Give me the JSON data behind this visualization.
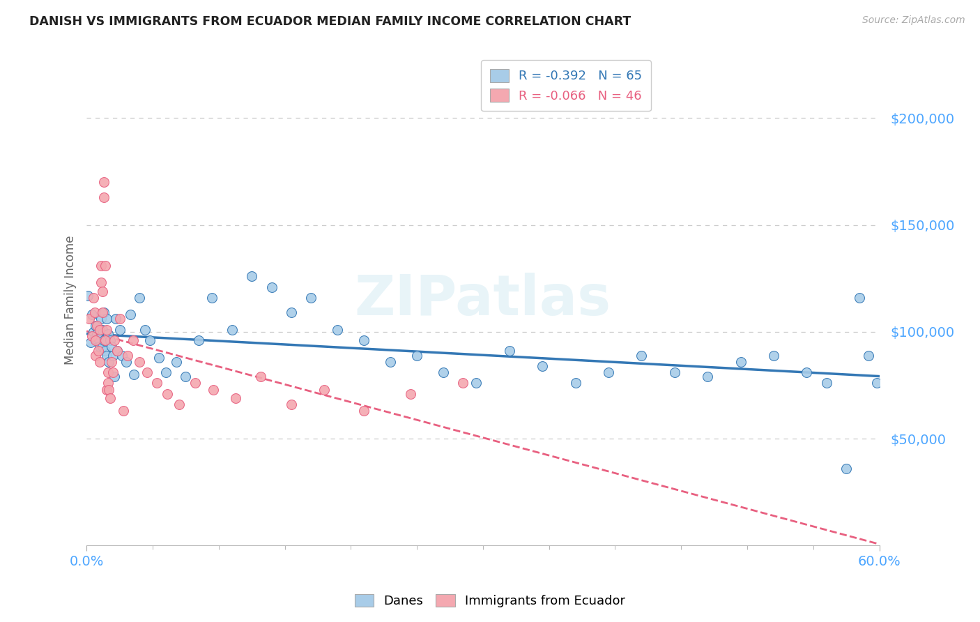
{
  "title": "DANISH VS IMMIGRANTS FROM ECUADOR MEDIAN FAMILY INCOME CORRELATION CHART",
  "source": "Source: ZipAtlas.com",
  "ylabel": "Median Family Income",
  "watermark": "ZIPatlas",
  "danes_R": -0.392,
  "danes_N": 65,
  "ecuador_R": -0.066,
  "ecuador_N": 46,
  "danes_color": "#a8cce8",
  "ecuador_color": "#f4a8b0",
  "danes_line_color": "#3478b5",
  "ecuador_line_color": "#e86080",
  "ytick_labels": [
    "$50,000",
    "$100,000",
    "$150,000",
    "$200,000"
  ],
  "ytick_vals": [
    50000,
    100000,
    150000,
    200000
  ],
  "xlim": [
    0.0,
    0.6
  ],
  "ylim": [
    0,
    230000
  ],
  "danes_x": [
    0.001,
    0.003,
    0.004,
    0.005,
    0.006,
    0.007,
    0.008,
    0.009,
    0.01,
    0.011,
    0.012,
    0.012,
    0.013,
    0.013,
    0.014,
    0.015,
    0.015,
    0.016,
    0.017,
    0.018,
    0.019,
    0.02,
    0.021,
    0.022,
    0.023,
    0.025,
    0.027,
    0.03,
    0.033,
    0.036,
    0.04,
    0.044,
    0.048,
    0.055,
    0.06,
    0.068,
    0.075,
    0.085,
    0.095,
    0.11,
    0.125,
    0.14,
    0.155,
    0.17,
    0.19,
    0.21,
    0.23,
    0.25,
    0.27,
    0.295,
    0.32,
    0.345,
    0.37,
    0.395,
    0.42,
    0.445,
    0.47,
    0.495,
    0.52,
    0.545,
    0.56,
    0.575,
    0.585,
    0.592,
    0.598
  ],
  "danes_y": [
    117000,
    95000,
    108000,
    100000,
    97000,
    103000,
    99000,
    97000,
    93000,
    106000,
    101000,
    93000,
    109000,
    96000,
    91000,
    89000,
    106000,
    99000,
    86000,
    96000,
    93000,
    89000,
    79000,
    106000,
    91000,
    101000,
    89000,
    86000,
    108000,
    80000,
    116000,
    101000,
    96000,
    88000,
    81000,
    86000,
    79000,
    96000,
    116000,
    101000,
    126000,
    121000,
    109000,
    116000,
    101000,
    96000,
    86000,
    89000,
    81000,
    76000,
    91000,
    84000,
    76000,
    81000,
    89000,
    81000,
    79000,
    86000,
    89000,
    81000,
    76000,
    36000,
    116000,
    89000,
    76000
  ],
  "ecuador_x": [
    0.002,
    0.004,
    0.005,
    0.006,
    0.007,
    0.007,
    0.008,
    0.009,
    0.01,
    0.01,
    0.011,
    0.011,
    0.012,
    0.012,
    0.013,
    0.013,
    0.014,
    0.014,
    0.015,
    0.015,
    0.016,
    0.016,
    0.017,
    0.018,
    0.019,
    0.02,
    0.021,
    0.023,
    0.025,
    0.028,
    0.031,
    0.035,
    0.04,
    0.046,
    0.053,
    0.061,
    0.07,
    0.082,
    0.096,
    0.113,
    0.132,
    0.155,
    0.18,
    0.21,
    0.245,
    0.285
  ],
  "ecuador_y": [
    106000,
    98000,
    116000,
    109000,
    89000,
    96000,
    103000,
    91000,
    86000,
    101000,
    131000,
    123000,
    109000,
    119000,
    170000,
    163000,
    131000,
    96000,
    101000,
    73000,
    76000,
    81000,
    73000,
    69000,
    86000,
    81000,
    96000,
    91000,
    106000,
    63000,
    89000,
    96000,
    86000,
    81000,
    76000,
    71000,
    66000,
    76000,
    73000,
    69000,
    79000,
    66000,
    73000,
    63000,
    71000,
    76000
  ],
  "background_color": "#ffffff",
  "grid_color": "#cccccc"
}
